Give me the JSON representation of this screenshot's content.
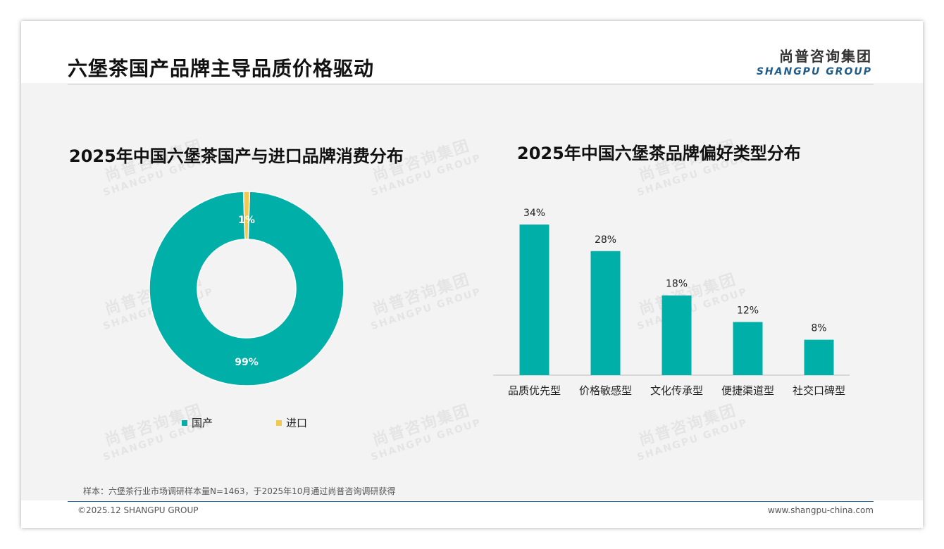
{
  "header": {
    "title": "六堡茶国产品牌主导品质价格驱动",
    "logo_cn": "尚普咨询集团",
    "logo_en": "SHANGPU GROUP"
  },
  "watermark": {
    "cn": "尚普咨询集团",
    "en": "SHANGPU GROUP"
  },
  "colors": {
    "teal": "#00b0a8",
    "yellow": "#f2c94c",
    "brand_blue": "#1f5c8a"
  },
  "chart_data": [
    {
      "type": "pie",
      "title": "2025年中国六堡茶国产与进口品牌消费分布",
      "labels": [
        "国产",
        "进口"
      ],
      "values": [
        99,
        1
      ],
      "value_labels": [
        "99%",
        "1%"
      ],
      "colors": [
        "#00b0a8",
        "#f2c94c"
      ],
      "donut": true,
      "legend": "bottom"
    },
    {
      "type": "bar",
      "title": "2025年中国六堡茶品牌偏好类型分布",
      "categories": [
        "品质优先型",
        "价格敏感型",
        "文化传承型",
        "便捷渠道型",
        "社交口碑型"
      ],
      "values": [
        34,
        28,
        18,
        12,
        8
      ],
      "value_labels": [
        "34%",
        "28%",
        "18%",
        "12%",
        "8%"
      ],
      "color": "#00b0a8",
      "grid": false
    }
  ],
  "footer": {
    "note": "样本：六堡茶行业市场调研样本量N=1463，于2025年10月通过尚普咨询调研获得",
    "copyright": "©2025.12 SHANGPU GROUP",
    "website": "www.shangpu-china.com"
  }
}
